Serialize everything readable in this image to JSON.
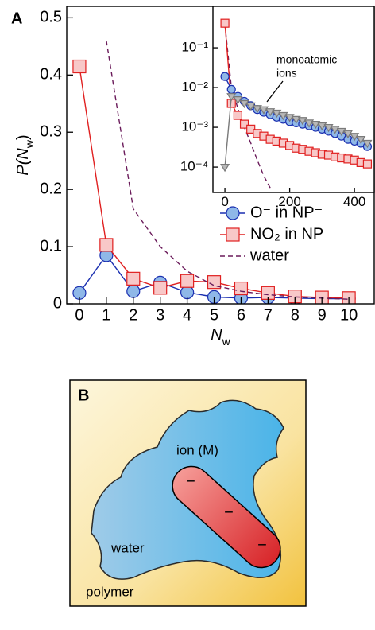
{
  "panel_labels": [
    "A",
    "B"
  ],
  "chart_data": [
    {
      "type": "line",
      "x_label": [
        "N",
        "w"
      ],
      "y_label": [
        "P(N",
        "w",
        ")"
      ],
      "x": [
        0,
        1,
        2,
        3,
        4,
        5,
        6,
        7,
        8,
        9,
        10
      ],
      "xlim": [
        -0.47,
        10.94
      ],
      "xticks": [
        0,
        1,
        2,
        3,
        4,
        5,
        6,
        7,
        8,
        9,
        10
      ],
      "ylim": [
        0,
        0.52
      ],
      "yticks": [
        0,
        0.1,
        0.2,
        0.3,
        0.4,
        0.5
      ],
      "yscale": "linear",
      "grid": false,
      "legend": "lower right",
      "series": [
        {
          "name": "O⁻ in NP⁻",
          "color": "#1a2fb0",
          "fill": "#8fb8e8",
          "marker": "circle",
          "dash": false,
          "values": [
            0.019,
            0.085,
            0.022,
            0.037,
            0.02,
            0.012,
            0.01,
            0.011,
            0.01,
            0.009,
            0.009
          ]
        },
        {
          "name": "NO₂ in NP⁻",
          "color": "#e02020",
          "fill": "#f8c8c8",
          "marker": "square",
          "dash": false,
          "values": [
            0.415,
            0.103,
            0.044,
            0.028,
            0.04,
            0.038,
            0.027,
            0.019,
            0.013,
            0.011,
            0.01
          ]
        },
        {
          "name": "water",
          "color": "#6a1a5a",
          "marker": null,
          "dash": true,
          "values": [
            null,
            0.46,
            0.166,
            0.1,
            0.057,
            0.032,
            0.022,
            0.016,
            0.012,
            0.01,
            0.008
          ]
        }
      ]
    },
    {
      "type": "line",
      "x": [
        0,
        20,
        40,
        60,
        80,
        100,
        120,
        140,
        160,
        180,
        200,
        220,
        240,
        260,
        280,
        300,
        320,
        340,
        360,
        380,
        400,
        420,
        440
      ],
      "xlim": [
        -37,
        461
      ],
      "xticks": [
        0,
        200,
        400
      ],
      "ylim": [
        2.3e-05,
        1.1
      ],
      "yticks": [
        {
          "value": 0.1,
          "label": "10⁻¹"
        },
        {
          "value": 0.01,
          "label": "10⁻²"
        },
        {
          "value": 0.001,
          "label": "10⁻³"
        },
        {
          "value": 0.0001,
          "label": "10⁻⁴"
        }
      ],
      "yscale": "log",
      "grid": false,
      "annotations": [
        "monoatomic",
        "ions"
      ],
      "series": [
        {
          "color": "#6a1a5a",
          "marker": null,
          "dash": true,
          "values": [
            0.4,
            0.01,
            0.003,
            0.001,
            0.0004,
            0.00015,
            6e-05,
            3e-05,
            null,
            null,
            null,
            null,
            null,
            null,
            null,
            null,
            null,
            null,
            null,
            null,
            null,
            null,
            null
          ]
        },
        {
          "color": "#e02020",
          "fill": "#f8c8c8",
          "marker": "square",
          "dash": false,
          "values": [
            0.415,
            0.004,
            0.002,
            0.0012,
            0.0009,
            0.0007,
            0.0006,
            0.0005,
            0.00045,
            0.0004,
            0.00035,
            0.0003,
            0.00028,
            0.00025,
            0.00023,
            0.00021,
            0.0002,
            0.00018,
            0.00017,
            0.00016,
            0.00015,
            0.00013,
            0.00012
          ]
        },
        {
          "color": "#1a2fb0",
          "fill": "#8fb8e8",
          "marker": "circle",
          "dash": false,
          "values": [
            0.019,
            0.009,
            0.006,
            0.0045,
            0.0035,
            0.0028,
            0.0024,
            0.0021,
            0.0018,
            0.0016,
            0.0014,
            0.0013,
            0.0012,
            0.0011,
            0.001,
            0.0009,
            0.0008,
            0.0007,
            0.0006,
            0.0005,
            0.00045,
            0.0004,
            0.00033
          ]
        },
        {
          "color": "#7a7a7a",
          "fill": "#b8b8b8",
          "marker": "triangle",
          "dash": false,
          "values": [
            0.0001,
            0.006,
            0.005,
            0.004,
            0.0035,
            0.003,
            0.0028,
            0.0025,
            0.0023,
            0.002,
            0.0018,
            0.0016,
            0.0015,
            0.0013,
            0.0012,
            0.0011,
            0.001,
            0.0009,
            0.0008,
            0.0007,
            0.0006,
            0.0005,
            0.0004
          ]
        }
      ]
    }
  ],
  "diagram": {
    "ion": "ion (M)",
    "water": "water",
    "polymer": "polymer",
    "charges": [
      "−",
      "−",
      "−"
    ]
  }
}
